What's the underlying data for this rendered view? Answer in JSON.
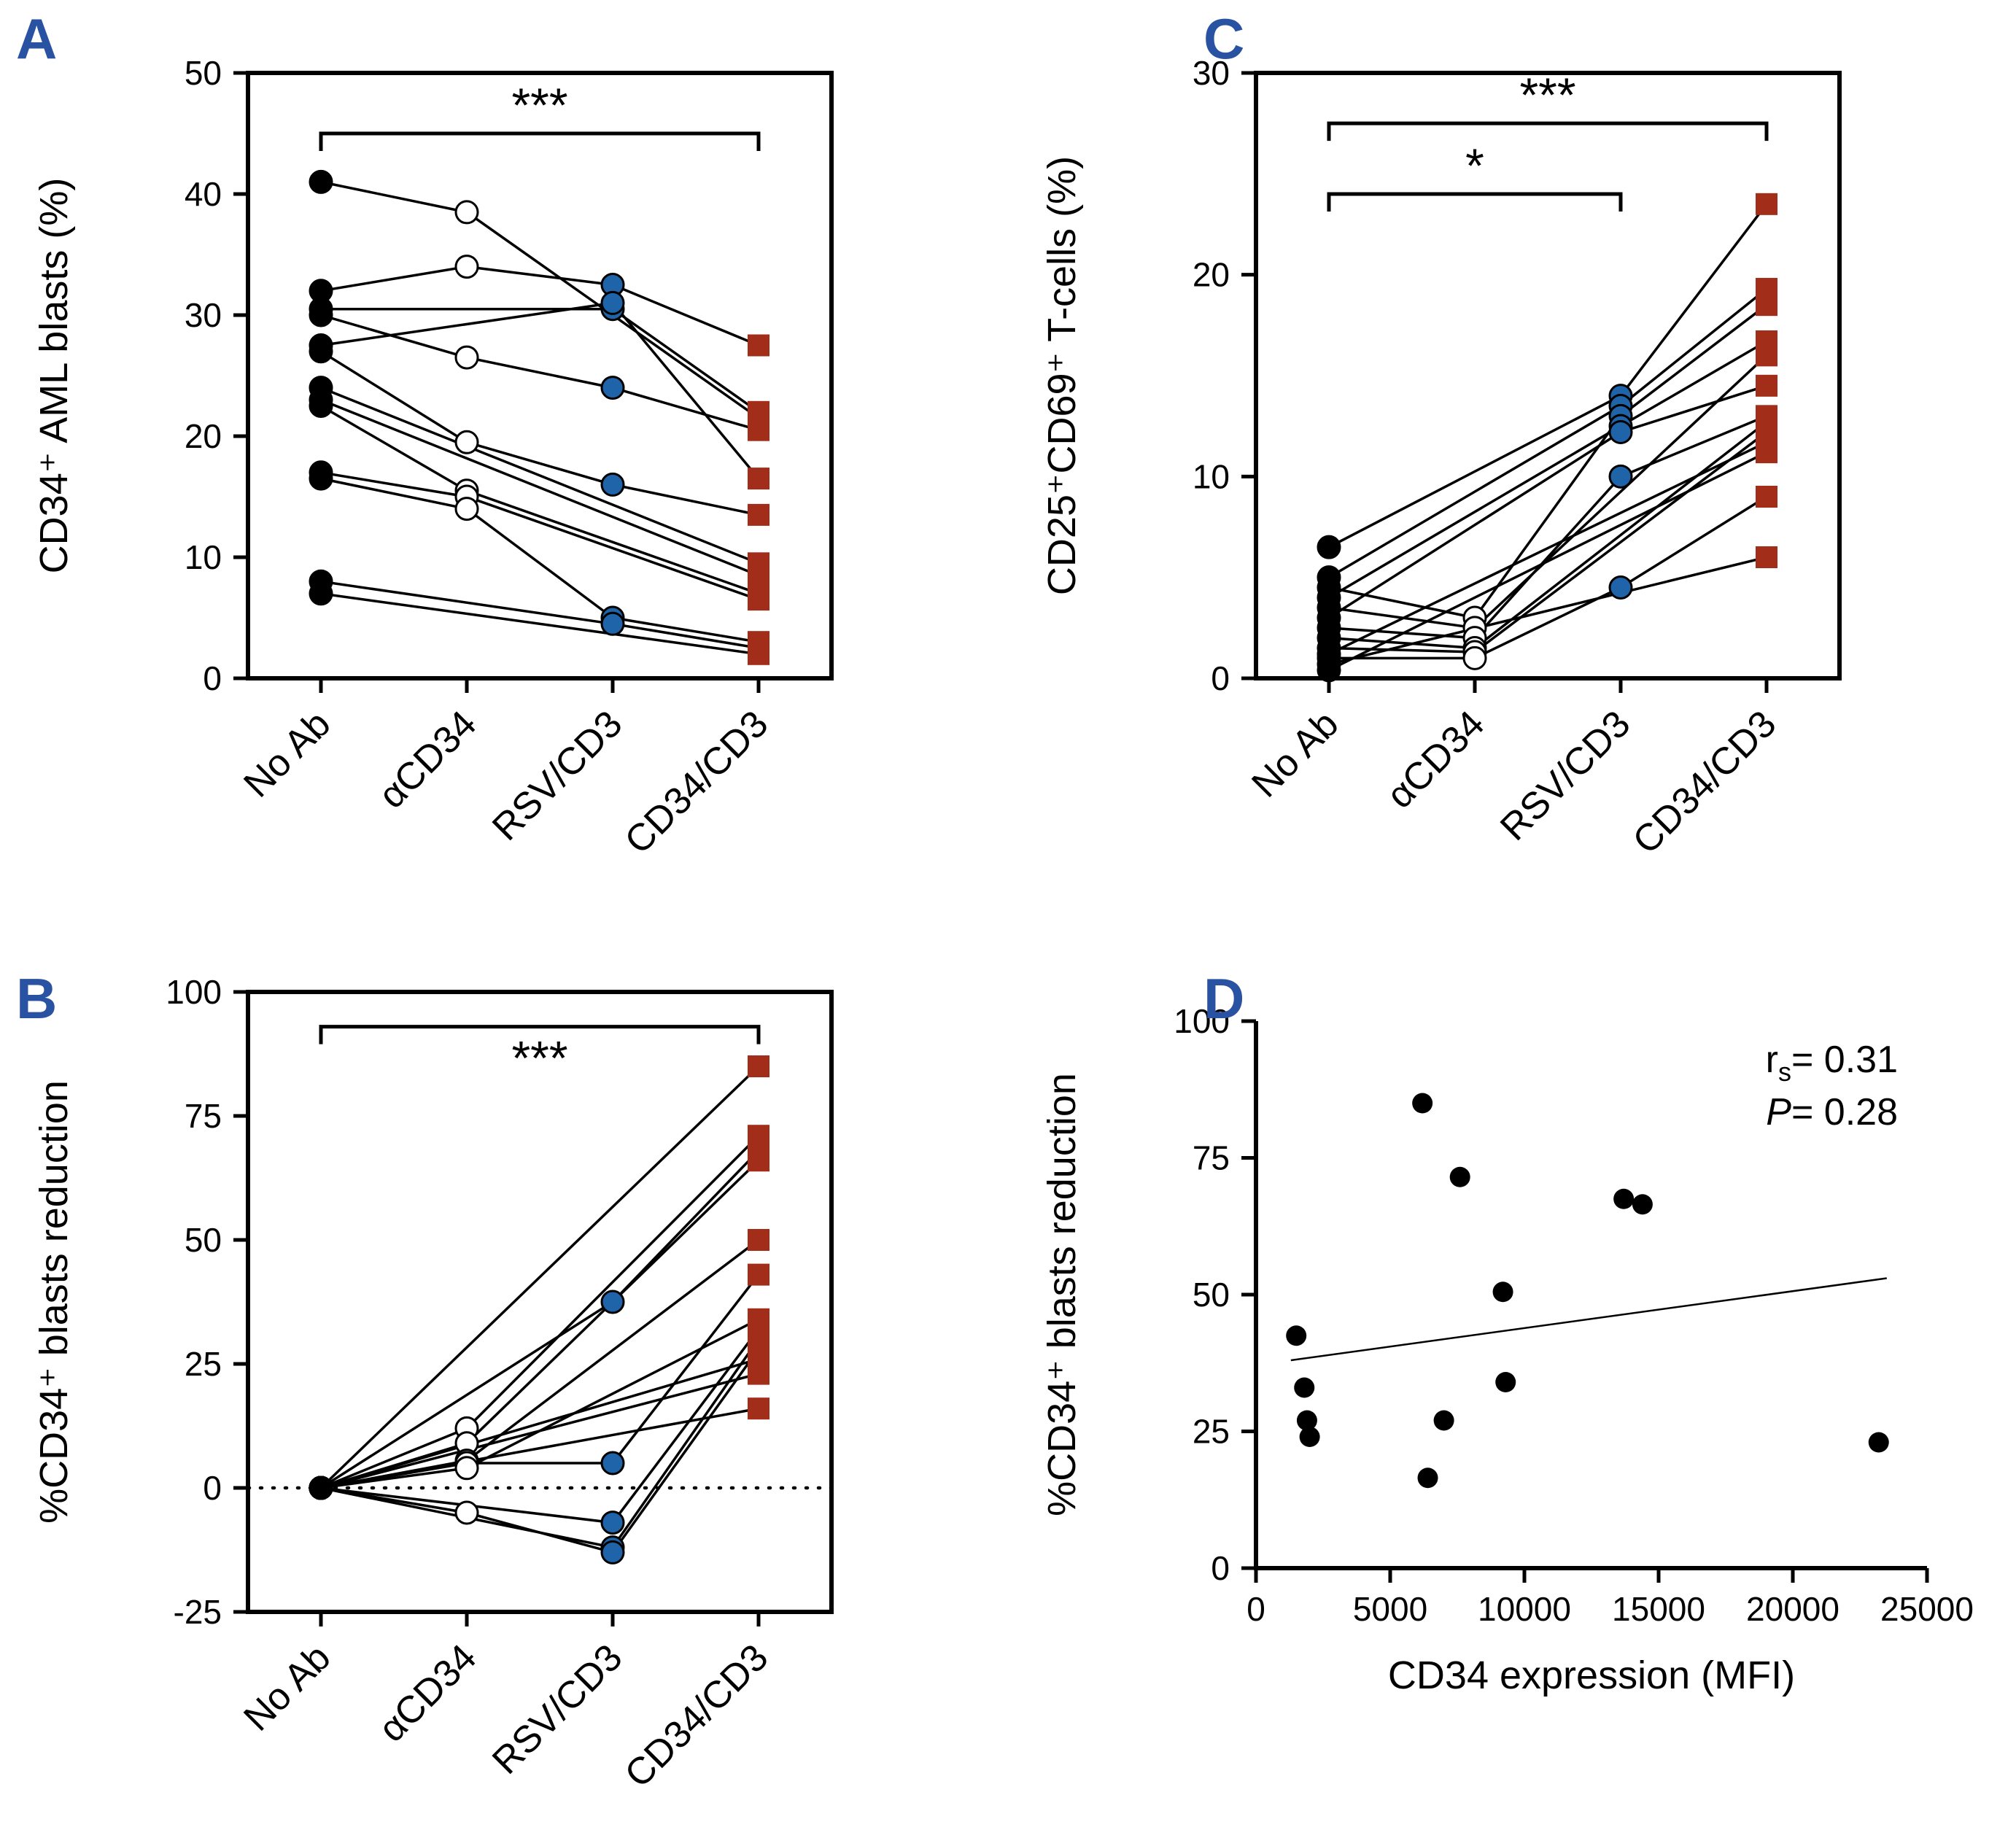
{
  "colors": {
    "black": "#000000",
    "white": "#ffffff",
    "blue": "#1F63A8",
    "red": "#A22D18",
    "panel_letter": "#2A52A2",
    "background": "#ffffff"
  },
  "chart_data": [
    {
      "letter": "A",
      "type": "paired-line",
      "categories": [
        "No Ab",
        "αCD34",
        "RSV/CD3",
        "CD34/CD3"
      ],
      "ylabel": "CD34⁺ AML blasts (%)",
      "ylim": [
        0,
        50
      ],
      "yticks": [
        0,
        10,
        20,
        30,
        40,
        50
      ],
      "markers": [
        "black-circle",
        "open-circle",
        "blue-circle",
        "red-square"
      ],
      "zero_line": false,
      "series": [
        [
          41,
          38.5,
          null,
          21.5
        ],
        [
          32,
          34,
          32.5,
          27.5
        ],
        [
          30.5,
          null,
          30.5,
          22
        ],
        [
          30,
          26.5,
          24,
          20.5
        ],
        [
          27.5,
          null,
          31,
          16.5
        ],
        [
          27,
          19.5,
          16,
          13.5
        ],
        [
          24,
          null,
          null,
          9.5
        ],
        [
          23,
          null,
          null,
          8.5
        ],
        [
          22.5,
          15.5,
          null,
          7
        ],
        [
          17,
          15,
          null,
          6.5
        ],
        [
          16.5,
          14,
          5,
          3
        ],
        [
          8,
          null,
          4.5,
          2.5
        ],
        [
          7,
          null,
          null,
          2
        ]
      ],
      "brackets": [
        {
          "from": 0,
          "to": 3,
          "y": 45,
          "label": "***",
          "label_side": "above"
        }
      ]
    },
    {
      "letter": "B",
      "type": "paired-line",
      "categories": [
        "No Ab",
        "αCD34",
        "RSV/CD3",
        "CD34/CD3"
      ],
      "ylabel": "%CD34⁺ blasts reduction",
      "ylim": [
        -25,
        100
      ],
      "yticks": [
        -25,
        0,
        25,
        50,
        75,
        100
      ],
      "markers": [
        "black-circle",
        "open-circle",
        "blue-circle",
        "red-square"
      ],
      "zero_line": true,
      "series": [
        [
          0,
          null,
          null,
          85
        ],
        [
          0,
          12,
          null,
          71
        ],
        [
          0,
          null,
          37.5,
          68
        ],
        [
          0,
          9,
          null,
          66
        ],
        [
          0,
          5.5,
          null,
          50
        ],
        [
          0,
          5,
          5,
          43
        ],
        [
          0,
          4,
          null,
          34
        ],
        [
          0,
          null,
          -7,
          32
        ],
        [
          0,
          null,
          -12,
          30
        ],
        [
          0,
          -5,
          -13,
          28
        ],
        [
          0,
          null,
          null,
          26
        ],
        [
          0,
          null,
          null,
          23
        ],
        [
          0,
          null,
          null,
          16
        ]
      ],
      "brackets": [
        {
          "from": 0,
          "to": 3,
          "y": 93,
          "label": "***",
          "label_side": "below"
        }
      ]
    },
    {
      "letter": "C",
      "type": "paired-line",
      "categories": [
        "No Ab",
        "αCD34",
        "RSV/CD3",
        "CD34/CD3"
      ],
      "ylabel": "CD25⁺CD69⁺ T-cells (%)",
      "ylim": [
        0,
        30
      ],
      "yticks": [
        0,
        10,
        20,
        30
      ],
      "markers": [
        "black-circle",
        "open-circle",
        "blue-circle",
        "red-square"
      ],
      "zero_line": false,
      "series": [
        [
          6.5,
          null,
          14,
          23.5
        ],
        [
          5,
          null,
          13.5,
          19.3
        ],
        [
          4.5,
          3,
          13,
          18.5
        ],
        [
          4,
          null,
          12.5,
          16.7
        ],
        [
          3.5,
          2.5,
          null,
          16
        ],
        [
          3,
          null,
          12.2,
          14.5
        ],
        [
          2.5,
          2,
          10,
          13
        ],
        [
          2,
          1.5,
          null,
          12.7
        ],
        [
          1.5,
          1.3,
          null,
          12.2
        ],
        [
          1.2,
          null,
          null,
          11.7
        ],
        [
          1,
          1,
          4.5,
          9
        ],
        [
          0.7,
          null,
          null,
          6
        ],
        [
          0.4,
          null,
          null,
          11.2
        ]
      ],
      "brackets": [
        {
          "from": 0,
          "to": 3,
          "y": 27.5,
          "label": "***",
          "label_side": "above"
        },
        {
          "from": 0,
          "to": 2,
          "y": 24,
          "label": "*",
          "label_side": "above"
        }
      ]
    },
    {
      "letter": "D",
      "type": "scatter",
      "xlabel": "CD34 expression (MFI)",
      "ylabel": "%CD34⁺ blasts reduction",
      "xlim": [
        0,
        25000
      ],
      "xticks": [
        0,
        5000,
        10000,
        15000,
        20000,
        25000
      ],
      "ylim": [
        0,
        100
      ],
      "yticks": [
        0,
        25,
        50,
        75,
        100
      ],
      "points": [
        [
          1500,
          42.5
        ],
        [
          1800,
          33
        ],
        [
          1900,
          27
        ],
        [
          2000,
          24
        ],
        [
          6200,
          85
        ],
        [
          6400,
          16.5
        ],
        [
          7000,
          27
        ],
        [
          7600,
          71.5
        ],
        [
          9200,
          50.5
        ],
        [
          9300,
          34
        ],
        [
          13700,
          67.5
        ],
        [
          14400,
          66.5
        ],
        [
          23200,
          23
        ]
      ],
      "trend": {
        "x": [
          1300,
          23500
        ],
        "y": [
          38,
          53
        ]
      },
      "stats": {
        "r_label": "r",
        "r_sub": "s",
        "r_value": "= 0.31",
        "p_label": "P",
        "p_value": "= 0.28"
      }
    }
  ]
}
